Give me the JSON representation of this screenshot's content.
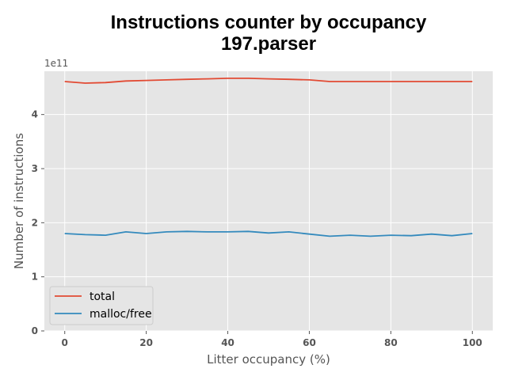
{
  "chart_data": {
    "type": "line",
    "title": "Instructions counter by occupancy",
    "subtitle": "197.parser",
    "xlabel": "Litter occupancy (%)",
    "ylabel": "Number of instructions",
    "y_offset_label": "1e11",
    "xlim": [
      -5,
      105
    ],
    "ylim": [
      0,
      4.8
    ],
    "x_ticks": [
      0,
      20,
      40,
      60,
      80,
      100
    ],
    "y_ticks": [
      0,
      1,
      2,
      3,
      4
    ],
    "grid": true,
    "legend_position": "lower-left",
    "x": [
      0,
      5,
      10,
      15,
      20,
      25,
      30,
      35,
      40,
      45,
      50,
      55,
      60,
      65,
      70,
      75,
      80,
      85,
      90,
      95,
      100
    ],
    "series": [
      {
        "name": "total",
        "color": "#e24a33",
        "values": [
          4.61,
          4.58,
          4.59,
          4.62,
          4.63,
          4.64,
          4.65,
          4.66,
          4.67,
          4.67,
          4.66,
          4.65,
          4.64,
          4.61,
          4.61,
          4.61,
          4.61,
          4.61,
          4.61,
          4.61,
          4.61
        ]
      },
      {
        "name": "malloc/free",
        "color": "#348abd",
        "values": [
          1.8,
          1.78,
          1.77,
          1.83,
          1.8,
          1.83,
          1.84,
          1.83,
          1.83,
          1.84,
          1.81,
          1.83,
          1.79,
          1.75,
          1.77,
          1.75,
          1.77,
          1.76,
          1.79,
          1.76,
          1.8
        ]
      }
    ]
  }
}
